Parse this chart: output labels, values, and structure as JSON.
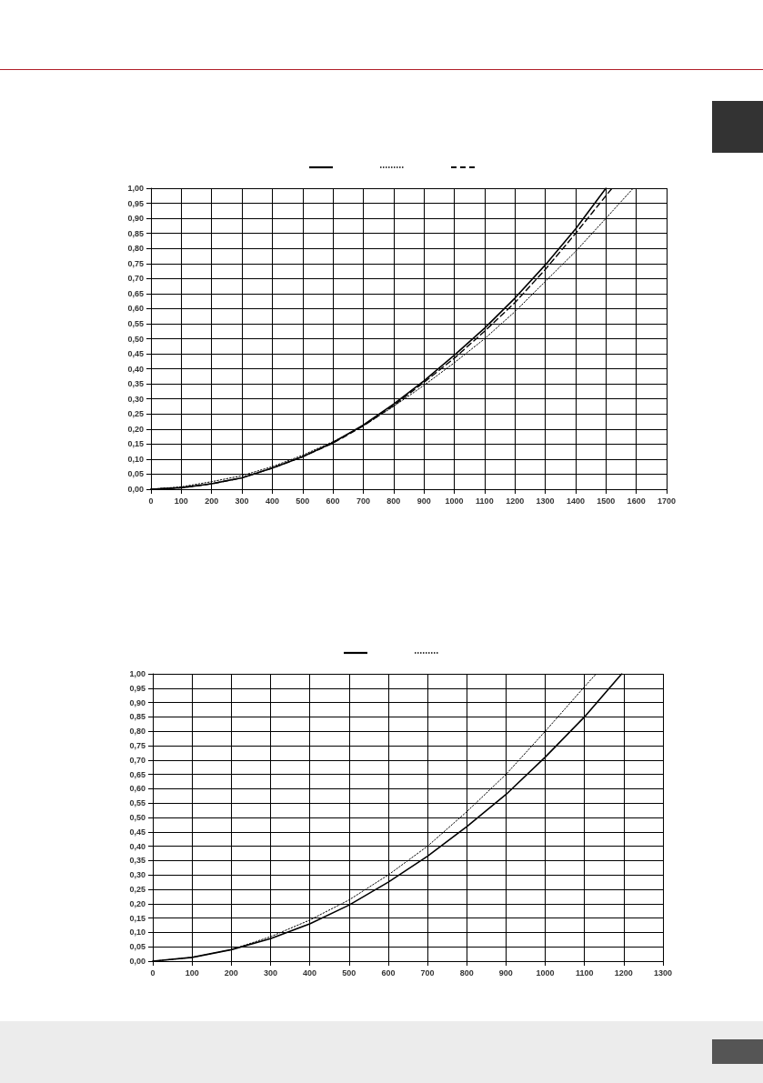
{
  "chart_data": [
    {
      "type": "line",
      "grid": true,
      "marker": "none",
      "xlim": [
        0,
        1700
      ],
      "xticks": [
        0,
        100,
        200,
        300,
        400,
        500,
        600,
        700,
        800,
        900,
        1000,
        1100,
        1200,
        1300,
        1400,
        1500,
        1600,
        1700
      ],
      "ylim": [
        0,
        1
      ],
      "yticks": [
        {
          "value": 0,
          "label": "0,00"
        },
        {
          "value": 0.05,
          "label": "0,05"
        },
        {
          "value": 0.1,
          "label": "0,10"
        },
        {
          "value": 0.15,
          "label": "0,15"
        },
        {
          "value": 0.2,
          "label": "0,20"
        },
        {
          "value": 0.25,
          "label": "0,25"
        },
        {
          "value": 0.3,
          "label": "0,30"
        },
        {
          "value": 0.35,
          "label": "0,35"
        },
        {
          "value": 0.4,
          "label": "0,40"
        },
        {
          "value": 0.45,
          "label": "0,45"
        },
        {
          "value": 0.5,
          "label": "0,50"
        },
        {
          "value": 0.55,
          "label": "0,55"
        },
        {
          "value": 0.6,
          "label": "0,60"
        },
        {
          "value": 0.65,
          "label": "0,65"
        },
        {
          "value": 0.7,
          "label": "0,70"
        },
        {
          "value": 0.75,
          "label": "0,75"
        },
        {
          "value": 0.8,
          "label": "0,80"
        },
        {
          "value": 0.85,
          "label": "0,85"
        },
        {
          "value": 0.9,
          "label": "0,90"
        },
        {
          "value": 0.95,
          "label": "0,95"
        },
        {
          "value": 1,
          "label": "1,00"
        }
      ],
      "series": [
        {
          "color": "#000000",
          "line_style": "solid",
          "x": [
            0,
            100,
            200,
            300,
            400,
            500,
            600,
            700,
            800,
            900,
            1000,
            1100,
            1200,
            1300,
            1400,
            1500
          ],
          "values": [
            0,
            0.005,
            0.018,
            0.038,
            0.07,
            0.108,
            0.155,
            0.213,
            0.283,
            0.36,
            0.445,
            0.535,
            0.635,
            0.745,
            0.865,
            1.0
          ]
        },
        {
          "color": "#000000",
          "line_style": "dotted",
          "x": [
            0,
            100,
            200,
            300,
            400,
            500,
            600,
            700,
            800,
            900,
            1000,
            1100,
            1200,
            1300,
            1400,
            1500,
            1590
          ],
          "values": [
            0,
            0.008,
            0.025,
            0.045,
            0.075,
            0.113,
            0.158,
            0.21,
            0.275,
            0.345,
            0.42,
            0.5,
            0.59,
            0.69,
            0.79,
            0.9,
            1.0
          ]
        },
        {
          "color": "#000000",
          "line_style": "dashed",
          "x": [
            0,
            100,
            200,
            300,
            400,
            500,
            600,
            700,
            800,
            900,
            1000,
            1100,
            1200,
            1300,
            1400,
            1500,
            1520
          ],
          "values": [
            0,
            0.005,
            0.018,
            0.038,
            0.07,
            0.108,
            0.153,
            0.21,
            0.278,
            0.355,
            0.435,
            0.525,
            0.62,
            0.73,
            0.85,
            0.975,
            1.0
          ]
        }
      ]
    },
    {
      "type": "line",
      "grid": true,
      "marker": "none",
      "xlim": [
        0,
        1300
      ],
      "xticks": [
        0,
        100,
        200,
        300,
        400,
        500,
        600,
        700,
        800,
        900,
        1000,
        1100,
        1200,
        1300
      ],
      "ylim": [
        0,
        1
      ],
      "yticks": [
        {
          "value": 0,
          "label": "0,00"
        },
        {
          "value": 0.05,
          "label": "0,05"
        },
        {
          "value": 0.1,
          "label": "0,10"
        },
        {
          "value": 0.15,
          "label": "0,15"
        },
        {
          "value": 0.2,
          "label": "0,20"
        },
        {
          "value": 0.25,
          "label": "0,25"
        },
        {
          "value": 0.3,
          "label": "0,30"
        },
        {
          "value": 0.35,
          "label": "0,35"
        },
        {
          "value": 0.4,
          "label": "0,40"
        },
        {
          "value": 0.45,
          "label": "0,45"
        },
        {
          "value": 0.5,
          "label": "0,50"
        },
        {
          "value": 0.55,
          "label": "0,55"
        },
        {
          "value": 0.6,
          "label": "0,60"
        },
        {
          "value": 0.65,
          "label": "0,65"
        },
        {
          "value": 0.7,
          "label": "0,70"
        },
        {
          "value": 0.75,
          "label": "0,75"
        },
        {
          "value": 0.8,
          "label": "0,80"
        },
        {
          "value": 0.85,
          "label": "0,85"
        },
        {
          "value": 0.9,
          "label": "0,90"
        },
        {
          "value": 0.95,
          "label": "0,95"
        },
        {
          "value": 1,
          "label": "1,00"
        }
      ],
      "series": [
        {
          "color": "#000000",
          "line_style": "solid",
          "x": [
            0,
            100,
            200,
            300,
            400,
            500,
            600,
            700,
            800,
            900,
            1000,
            1100,
            1195
          ],
          "values": [
            0,
            0.013,
            0.04,
            0.078,
            0.13,
            0.195,
            0.275,
            0.365,
            0.468,
            0.58,
            0.71,
            0.85,
            1.0
          ]
        },
        {
          "color": "#000000",
          "line_style": "dotted",
          "x": [
            0,
            100,
            200,
            300,
            400,
            500,
            600,
            700,
            800,
            900,
            1000,
            1100,
            1130
          ],
          "values": [
            0,
            0.013,
            0.04,
            0.085,
            0.143,
            0.213,
            0.3,
            0.4,
            0.52,
            0.65,
            0.8,
            0.955,
            1.0
          ]
        }
      ]
    }
  ]
}
